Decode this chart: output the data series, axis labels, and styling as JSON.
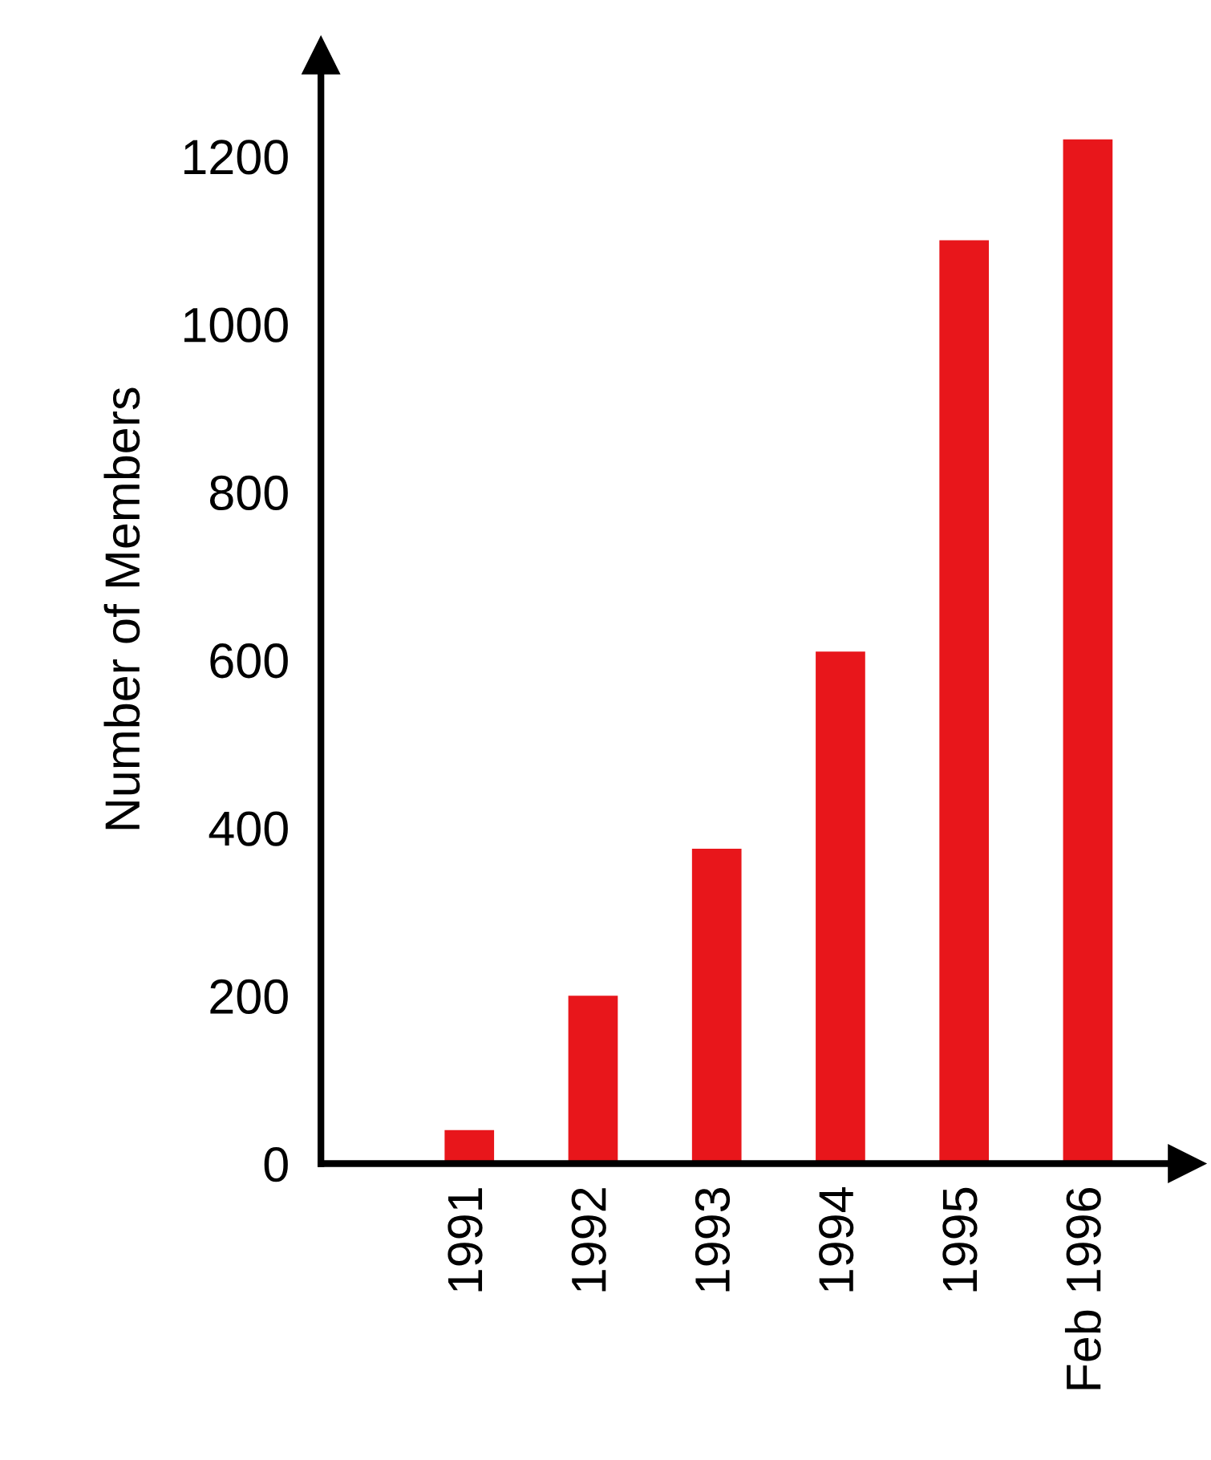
{
  "chart_data": {
    "type": "bar",
    "ylabel": "Number of Members",
    "categories": [
      "1991",
      "1992",
      "1993",
      "1994",
      "1995",
      "Feb 1996"
    ],
    "values": [
      40,
      200,
      375,
      610,
      1100,
      1220
    ],
    "color": "#e8161b",
    "ylim": [
      0,
      1320
    ],
    "yticks": [
      0,
      200,
      400,
      600,
      800,
      1000,
      1200
    ],
    "grid": false
  }
}
